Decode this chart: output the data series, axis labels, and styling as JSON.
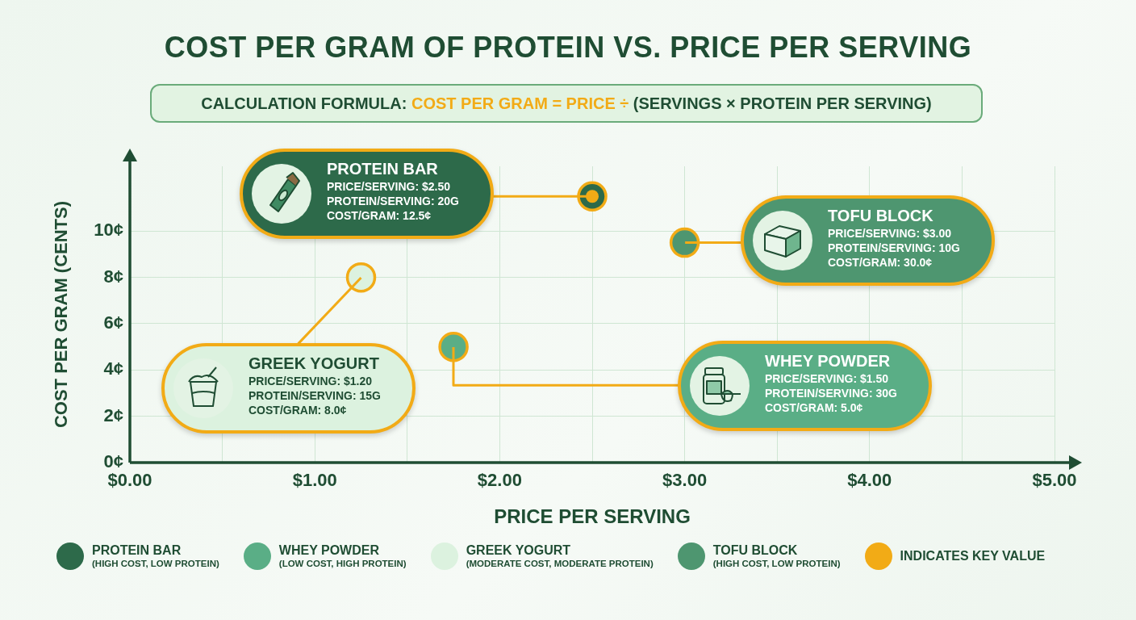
{
  "chart_data": {
    "type": "scatter",
    "title": "COST PER GRAM OF PROTEIN VS. PRICE PER SERVING",
    "subtitle": "CALCULATION FORMULA: COST PER GRAM = PRICE ÷ (SERVINGS × PROTEIN PER SERVING)",
    "xlabel": "PRICE PER SERVING",
    "ylabel": "COST PER GRAM (CENTS)",
    "xlim": [
      0,
      5
    ],
    "ylim": [
      0,
      12.8
    ],
    "xticks": [
      {
        "value": 0,
        "label": "$0.00"
      },
      {
        "value": 0.5,
        "label": null
      },
      {
        "value": 1,
        "label": "$1.00"
      },
      {
        "value": 1.5,
        "label": null
      },
      {
        "value": 2,
        "label": "$2.00"
      },
      {
        "value": 2.5,
        "label": null
      },
      {
        "value": 3,
        "label": "$3.00"
      },
      {
        "value": 3.5,
        "label": null
      },
      {
        "value": 4,
        "label": "$4.00"
      },
      {
        "value": 4.5,
        "label": null
      },
      {
        "value": 5,
        "label": "$5.00"
      }
    ],
    "yticks": [
      {
        "value": 0,
        "label": "0¢"
      },
      {
        "value": 2,
        "label": "2¢"
      },
      {
        "value": 4,
        "label": "4¢"
      },
      {
        "value": 6,
        "label": "6¢"
      },
      {
        "value": 8,
        "label": "8¢"
      },
      {
        "value": 10,
        "label": "10¢"
      }
    ],
    "grid": true,
    "legend": "bottom",
    "marker": "circle",
    "series": [
      {
        "name": "PROTEIN BAR\n(HIGH COST, LOW PROTEIN)",
        "color": "#2d6a4a",
        "x": [
          2.5
        ],
        "values": [
          11.5
        ]
      },
      {
        "name": "WHEY POWDER\n(LOW COST, HIGH PROTEIN)",
        "color": "#5aae86",
        "x": [
          1.75
        ],
        "values": [
          5
        ]
      },
      {
        "name": "GREEK YOGURT\n(MODERATE COST, MODERATE PROTEIN)",
        "color": "#dcf2df",
        "x": [
          1.25
        ],
        "values": [
          8
        ]
      },
      {
        "name": "TOFU BLOCK\n(HIGH COST, LOW PROTEIN)",
        "color": "#4e9670",
        "x": [
          3
        ],
        "values": [
          9.5
        ]
      },
      {
        "name": "INDICATES KEY VALUE",
        "color": "#f2ab16",
        "x": [
          2.5
        ],
        "values": [
          11.5
        ]
      }
    ],
    "annotations": [
      {
        "text": "PROTEIN BAR\nPRICE/SERVING: $2.50\nPROTEIN/SERVING: 20G\nCOST/GRAM: 12.5¢",
        "x": 2.5,
        "y": 11.5
      },
      {
        "text": "WHEY POWDER\nPRICE/SERVING: $1.50\nPROTEIN/SERVING: 30G\nCOST/GRAM: 5.0¢",
        "x": 1.75,
        "y": 5
      },
      {
        "text": "GREEK YOGURT\nPRICE/SERVING: $1.20\nPROTEIN/SERVING: 15G\nCOST/GRAM: 8.0¢",
        "x": 1.25,
        "y": 8
      },
      {
        "text": "TOFU BLOCK\nPRICE/SERVING: $3.00\nPROTEIN/SERVING: 10G\nCOST/GRAM: 30.0¢",
        "x": 3,
        "y": 9.5
      }
    ]
  }
}
